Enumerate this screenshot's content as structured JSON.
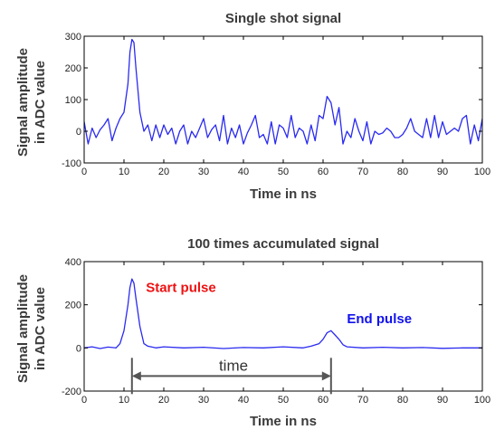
{
  "chart_data": [
    {
      "type": "line",
      "title": "Single shot signal",
      "xlabel": "Time in ns",
      "ylabel": [
        "Signal amplitude",
        "in ADC value"
      ],
      "xlim": [
        0,
        100
      ],
      "ylim": [
        -100,
        300
      ],
      "xticks": [
        0,
        10,
        20,
        30,
        40,
        50,
        60,
        70,
        80,
        90,
        100
      ],
      "yticks": [
        -100,
        0,
        100,
        200,
        300
      ],
      "grid": false,
      "line_color": "#2a2af0",
      "series": [
        {
          "x": [
            0,
            1,
            2,
            3,
            4,
            5,
            6,
            7,
            8,
            9,
            10,
            11,
            11.5,
            12,
            12.5,
            13,
            14,
            15,
            16,
            17,
            18,
            19,
            20,
            21,
            22,
            23,
            24,
            25,
            26,
            27,
            28,
            29,
            30,
            31,
            32,
            33,
            34,
            35,
            36,
            37,
            38,
            39,
            40,
            41,
            42,
            43,
            44,
            45,
            46,
            47,
            48,
            49,
            50,
            51,
            52,
            53,
            54,
            55,
            56,
            57,
            58,
            59,
            60,
            61,
            62,
            63,
            64,
            65,
            66,
            67,
            68,
            69,
            70,
            71,
            72,
            73,
            74,
            75,
            76,
            77,
            78,
            79,
            80,
            81,
            82,
            83,
            84,
            85,
            86,
            87,
            88,
            89,
            90,
            91,
            92,
            93,
            94,
            95,
            96,
            97,
            98,
            99,
            100
          ],
          "y": [
            30,
            -40,
            10,
            -20,
            5,
            20,
            40,
            -30,
            10,
            40,
            60,
            150,
            250,
            290,
            280,
            200,
            60,
            0,
            20,
            -30,
            20,
            -20,
            20,
            -10,
            10,
            -40,
            0,
            20,
            -40,
            0,
            -20,
            10,
            40,
            -20,
            5,
            20,
            -30,
            50,
            -40,
            10,
            -20,
            20,
            -40,
            -5,
            20,
            50,
            -20,
            -10,
            -40,
            30,
            -40,
            20,
            10,
            -20,
            50,
            -20,
            10,
            0,
            -40,
            20,
            -30,
            50,
            40,
            110,
            90,
            20,
            75,
            -40,
            0,
            -20,
            40,
            0,
            -30,
            30,
            -40,
            0,
            -10,
            -5,
            10,
            0,
            -20,
            -20,
            -10,
            10,
            40,
            0,
            -10,
            -20,
            40,
            -20,
            50,
            -20,
            30,
            -10,
            0,
            10,
            0,
            40,
            50,
            -40,
            20,
            -30,
            40
          ]
        }
      ]
    },
    {
      "type": "line",
      "title": "100 times accumulated signal",
      "xlabel": "Time in ns",
      "ylabel": [
        "Signal amplitude",
        "in ADC value"
      ],
      "xlim": [
        0,
        100
      ],
      "ylim": [
        -200,
        400
      ],
      "xticks": [
        0,
        10,
        20,
        30,
        40,
        50,
        60,
        70,
        80,
        90,
        100
      ],
      "yticks": [
        -200,
        0,
        200,
        400
      ],
      "grid": false,
      "line_color": "#2a2af0",
      "series": [
        {
          "x": [
            0,
            2,
            4,
            6,
            8,
            9,
            10,
            11,
            11.5,
            12,
            12.5,
            13,
            14,
            15,
            16,
            18,
            20,
            25,
            30,
            35,
            40,
            45,
            50,
            55,
            57,
            59,
            60,
            61,
            62,
            63,
            64,
            65,
            66,
            70,
            75,
            80,
            85,
            90,
            95,
            100
          ],
          "y": [
            0,
            5,
            -3,
            4,
            0,
            20,
            80,
            200,
            280,
            320,
            300,
            230,
            100,
            20,
            8,
            0,
            5,
            0,
            3,
            -3,
            2,
            0,
            5,
            0,
            8,
            20,
            40,
            70,
            80,
            60,
            40,
            15,
            5,
            0,
            3,
            0,
            2,
            -2,
            0,
            0
          ]
        }
      ],
      "annotations": [
        {
          "text": "Start pulse",
          "color": "#ee1111",
          "x": 15.5,
          "y": 260
        },
        {
          "text": "End pulse",
          "color": "#1111ee",
          "x": 66,
          "y": 115
        },
        {
          "text": "time",
          "color": "#333333",
          "x": 37.5,
          "y": -80,
          "arrow_from": 12,
          "arrow_to": 62,
          "arrow_y": -130
        }
      ]
    }
  ]
}
